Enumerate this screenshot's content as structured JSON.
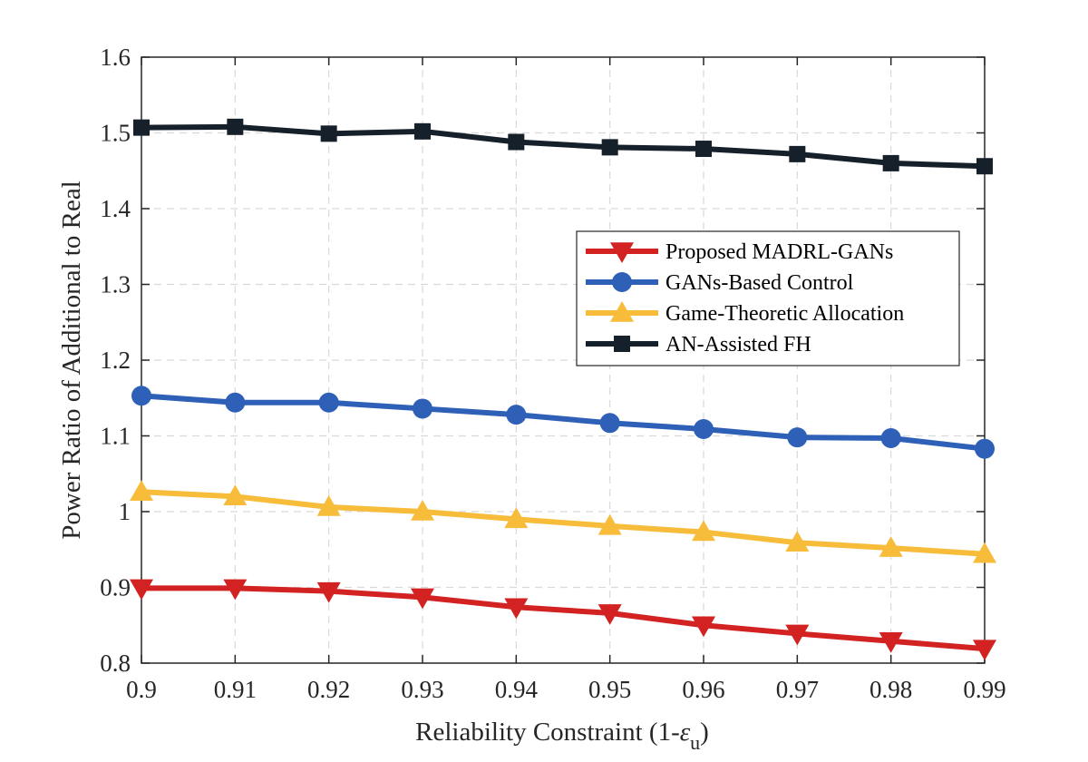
{
  "chart_data": {
    "type": "line",
    "xlabel_main": "Reliability Constraint (1-",
    "xlabel_symbol": "ε",
    "xlabel_subscript": "u",
    "xlabel_close": ")",
    "ylabel": "Power Ratio of Additional to Real",
    "xlim": [
      0.9,
      0.99
    ],
    "ylim": [
      0.8,
      1.6
    ],
    "grid": true,
    "legend_position": "right",
    "x": [
      0.9,
      0.91,
      0.92,
      0.93,
      0.94,
      0.95,
      0.96,
      0.97,
      0.98,
      0.99
    ],
    "x_tick_labels": [
      "0.9",
      "0.91",
      "0.92",
      "0.93",
      "0.94",
      "0.95",
      "0.96",
      "0.97",
      "0.98",
      "0.99"
    ],
    "y_ticks": [
      0.8,
      0.9,
      1.0,
      1.1,
      1.2,
      1.3,
      1.4,
      1.5,
      1.6
    ],
    "y_tick_labels": [
      "0.8",
      "0.9",
      "1",
      "1.1",
      "1.2",
      "1.3",
      "1.4",
      "1.5",
      "1.6"
    ],
    "series": [
      {
        "name": "Proposed MADRL-GANs",
        "color": "#D32222",
        "marker": "triangle-down",
        "values": [
          0.899,
          0.899,
          0.895,
          0.887,
          0.874,
          0.866,
          0.85,
          0.839,
          0.829,
          0.819
        ]
      },
      {
        "name": "GANs-Based Control",
        "color": "#2E60B8",
        "marker": "circle",
        "values": [
          1.153,
          1.144,
          1.144,
          1.136,
          1.128,
          1.117,
          1.109,
          1.098,
          1.097,
          1.083
        ]
      },
      {
        "name": "Game-Theoretic Allocation",
        "color": "#F7BC3A",
        "marker": "triangle-up",
        "values": [
          1.026,
          1.02,
          1.006,
          1.0,
          0.99,
          0.981,
          0.973,
          0.959,
          0.952,
          0.944
        ]
      },
      {
        "name": "AN-Assisted FH",
        "color": "#16202B",
        "marker": "square",
        "values": [
          1.507,
          1.508,
          1.499,
          1.502,
          1.488,
          1.481,
          1.479,
          1.472,
          1.46,
          1.456
        ]
      }
    ]
  }
}
